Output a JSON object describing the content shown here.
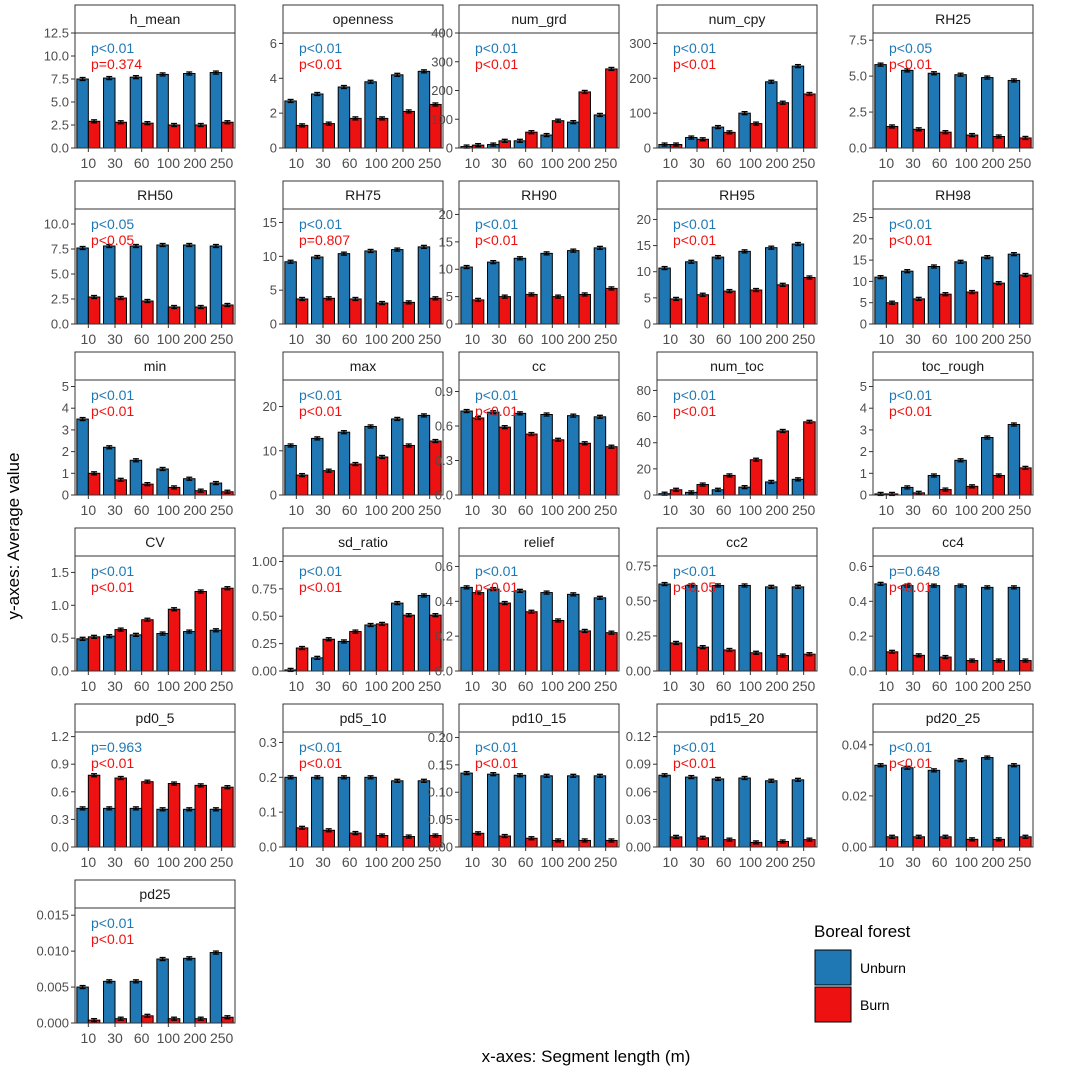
{
  "figure": {
    "ylabel": "y-axes:  Average value",
    "xlabel": "x-axes:  Segment length (m)",
    "categories": [
      "10",
      "30",
      "60",
      "100",
      "200",
      "250"
    ],
    "colors": {
      "unburn": "#1F78B4",
      "burn": "#EE1111",
      "unburn_text": "#1F78B4",
      "burn_text": "#EE1111"
    },
    "legend": {
      "title": "Boreal forest",
      "items": [
        "Unburn",
        "Burn"
      ]
    }
  },
  "chart_data": [
    {
      "type": "bar",
      "title": "h_mean",
      "ylim": [
        0,
        12.5
      ],
      "yticks": [
        0,
        2.5,
        5,
        7.5,
        10,
        12.5
      ],
      "ytick_labels": [
        "0.0",
        "2.5",
        "5.0",
        "7.5",
        "10.0",
        "12.5"
      ],
      "p_unburn": "p<0.01",
      "p_burn": "p=0.374",
      "series": [
        {
          "name": "Unburn",
          "values": [
            7.5,
            7.6,
            7.7,
            8.0,
            8.1,
            8.2
          ]
        },
        {
          "name": "Burn",
          "values": [
            2.9,
            2.8,
            2.7,
            2.5,
            2.5,
            2.8
          ]
        }
      ]
    },
    {
      "type": "bar",
      "title": "openness",
      "ylim": [
        0,
        6.6
      ],
      "yticks": [
        0,
        2,
        4,
        6
      ],
      "ytick_labels": [
        "0",
        "2",
        "4",
        "6"
      ],
      "p_unburn": "p<0.01",
      "p_burn": "p<0.01",
      "series": [
        {
          "name": "Unburn",
          "values": [
            2.7,
            3.1,
            3.5,
            3.8,
            4.2,
            4.4
          ]
        },
        {
          "name": "Burn",
          "values": [
            1.3,
            1.4,
            1.7,
            1.7,
            2.1,
            2.5
          ]
        }
      ]
    },
    {
      "type": "bar",
      "title": "num_grd",
      "ylim": [
        0,
        400
      ],
      "yticks": [
        0,
        100,
        200,
        300,
        400
      ],
      "ytick_labels": [
        "0",
        "100",
        "200",
        "300",
        "400"
      ],
      "p_unburn": "p<0.01",
      "p_burn": "p<0.01",
      "series": [
        {
          "name": "Unburn",
          "values": [
            5,
            12,
            25,
            45,
            90,
            115
          ]
        },
        {
          "name": "Burn",
          "values": [
            10,
            25,
            55,
            95,
            195,
            275
          ]
        }
      ]
    },
    {
      "type": "bar",
      "title": "num_cpy",
      "ylim": [
        0,
        330
      ],
      "yticks": [
        0,
        100,
        200,
        300
      ],
      "ytick_labels": [
        "0",
        "100",
        "200",
        "300"
      ],
      "p_unburn": "p<0.01",
      "p_burn": "p<0.01",
      "series": [
        {
          "name": "Unburn",
          "values": [
            10,
            30,
            60,
            100,
            190,
            235
          ]
        },
        {
          "name": "Burn",
          "values": [
            10,
            25,
            45,
            70,
            130,
            155
          ]
        }
      ]
    },
    {
      "type": "bar",
      "title": "RH25",
      "ylim": [
        0,
        8
      ],
      "yticks": [
        0,
        2.5,
        5,
        7.5
      ],
      "ytick_labels": [
        "0.0",
        "2.5",
        "5.0",
        "7.5"
      ],
      "p_unburn": "p<0.05",
      "p_burn": "p<0.01",
      "series": [
        {
          "name": "Unburn",
          "values": [
            5.8,
            5.4,
            5.2,
            5.1,
            4.9,
            4.7
          ]
        },
        {
          "name": "Burn",
          "values": [
            1.5,
            1.3,
            1.1,
            0.9,
            0.8,
            0.7
          ]
        }
      ]
    },
    {
      "type": "bar",
      "title": "RH50",
      "ylim": [
        0,
        11.5
      ],
      "yticks": [
        0,
        2.5,
        5,
        7.5,
        10
      ],
      "ytick_labels": [
        "0.0",
        "2.5",
        "5.0",
        "7.5",
        "10.0"
      ],
      "p_unburn": "p<0.05",
      "p_burn": "p<0.05",
      "series": [
        {
          "name": "Unburn",
          "values": [
            7.6,
            7.8,
            7.8,
            7.9,
            7.9,
            7.8
          ]
        },
        {
          "name": "Burn",
          "values": [
            2.7,
            2.6,
            2.3,
            1.7,
            1.7,
            1.9
          ]
        }
      ]
    },
    {
      "type": "bar",
      "title": "RH75",
      "ylim": [
        0,
        17
      ],
      "yticks": [
        0,
        5,
        10,
        15
      ],
      "ytick_labels": [
        "0",
        "5",
        "10",
        "15"
      ],
      "p_unburn": "p<0.01",
      "p_burn": "p=0.807",
      "series": [
        {
          "name": "Unburn",
          "values": [
            9.2,
            9.9,
            10.4,
            10.8,
            11.0,
            11.4
          ]
        },
        {
          "name": "Burn",
          "values": [
            3.7,
            3.8,
            3.7,
            3.1,
            3.2,
            3.8
          ]
        }
      ]
    },
    {
      "type": "bar",
      "title": "RH90",
      "ylim": [
        0,
        21
      ],
      "yticks": [
        0,
        5,
        10,
        15,
        20
      ],
      "ytick_labels": [
        "0",
        "5",
        "10",
        "15",
        "20"
      ],
      "p_unburn": "p<0.01",
      "p_burn": "p<0.01",
      "series": [
        {
          "name": "Unburn",
          "values": [
            10.4,
            11.3,
            12.0,
            12.9,
            13.4,
            13.9
          ]
        },
        {
          "name": "Burn",
          "values": [
            4.4,
            5.0,
            5.4,
            5.0,
            5.4,
            6.5
          ]
        }
      ]
    },
    {
      "type": "bar",
      "title": "RH95",
      "ylim": [
        0,
        22
      ],
      "yticks": [
        0,
        5,
        10,
        15,
        20
      ],
      "ytick_labels": [
        "0",
        "5",
        "10",
        "15",
        "20"
      ],
      "p_unburn": "p<0.01",
      "p_burn": "p<0.01",
      "series": [
        {
          "name": "Unburn",
          "values": [
            10.7,
            11.9,
            12.8,
            13.9,
            14.6,
            15.3
          ]
        },
        {
          "name": "Burn",
          "values": [
            4.8,
            5.6,
            6.3,
            6.5,
            7.5,
            8.9
          ]
        }
      ]
    },
    {
      "type": "bar",
      "title": "RH98",
      "ylim": [
        0,
        27
      ],
      "yticks": [
        0,
        5,
        10,
        15,
        20,
        25
      ],
      "ytick_labels": [
        "0",
        "5",
        "10",
        "15",
        "20",
        "25"
      ],
      "p_unburn": "p<0.01",
      "p_burn": "p<0.01",
      "series": [
        {
          "name": "Unburn",
          "values": [
            11.0,
            12.4,
            13.5,
            14.6,
            15.7,
            16.4
          ]
        },
        {
          "name": "Burn",
          "values": [
            5.0,
            5.9,
            7.0,
            7.5,
            9.6,
            11.5
          ]
        }
      ]
    },
    {
      "type": "bar",
      "title": "min",
      "ylim": [
        0,
        5.3
      ],
      "yticks": [
        0,
        1,
        2,
        3,
        4,
        5
      ],
      "ytick_labels": [
        "0",
        "1",
        "2",
        "3",
        "4",
        "5"
      ],
      "p_unburn": "p<0.01",
      "p_burn": "p<0.01",
      "series": [
        {
          "name": "Unburn",
          "values": [
            3.5,
            2.2,
            1.6,
            1.2,
            0.75,
            0.55
          ]
        },
        {
          "name": "Burn",
          "values": [
            1.0,
            0.7,
            0.5,
            0.35,
            0.2,
            0.15
          ]
        }
      ]
    },
    {
      "type": "bar",
      "title": "max",
      "ylim": [
        0,
        26
      ],
      "yticks": [
        0,
        10,
        20
      ],
      "ytick_labels": [
        "0",
        "10",
        "20"
      ],
      "p_unburn": "p<0.01",
      "p_burn": "p<0.01",
      "series": [
        {
          "name": "Unburn",
          "values": [
            11.2,
            12.8,
            14.2,
            15.5,
            17.2,
            18.0
          ]
        },
        {
          "name": "Burn",
          "values": [
            4.5,
            5.5,
            7.0,
            8.6,
            11.2,
            12.2
          ]
        }
      ]
    },
    {
      "type": "bar",
      "title": "cc",
      "ylim": [
        0,
        1.0
      ],
      "yticks": [
        0,
        0.3,
        0.6,
        0.9
      ],
      "ytick_labels": [
        "0.0",
        "0.3",
        "0.6",
        "0.9"
      ],
      "p_unburn": "p<0.01",
      "p_burn": "p<0.01",
      "series": [
        {
          "name": "Unburn",
          "values": [
            0.73,
            0.72,
            0.71,
            0.7,
            0.69,
            0.68
          ]
        },
        {
          "name": "Burn",
          "values": [
            0.67,
            0.59,
            0.53,
            0.48,
            0.45,
            0.42
          ]
        }
      ]
    },
    {
      "type": "bar",
      "title": "num_toc",
      "ylim": [
        0,
        88
      ],
      "yticks": [
        0,
        20,
        40,
        60,
        80
      ],
      "ytick_labels": [
        "0",
        "20",
        "40",
        "60",
        "80"
      ],
      "p_unburn": "p<0.01",
      "p_burn": "p<0.01",
      "series": [
        {
          "name": "Unburn",
          "values": [
            1,
            2,
            4,
            6,
            10,
            12
          ]
        },
        {
          "name": "Burn",
          "values": [
            4,
            8,
            15,
            27,
            49,
            56
          ]
        }
      ]
    },
    {
      "type": "bar",
      "title": "toc_rough",
      "ylim": [
        0,
        5.3
      ],
      "yticks": [
        0,
        1,
        2,
        3,
        4,
        5
      ],
      "ytick_labels": [
        "0",
        "1",
        "2",
        "3",
        "4",
        "5"
      ],
      "p_unburn": "p<0.01",
      "p_burn": "p<0.01",
      "series": [
        {
          "name": "Unburn",
          "values": [
            0.05,
            0.35,
            0.9,
            1.6,
            2.65,
            3.25
          ]
        },
        {
          "name": "Burn",
          "values": [
            0.05,
            0.1,
            0.25,
            0.4,
            0.9,
            1.25
          ]
        }
      ]
    },
    {
      "type": "bar",
      "title": "CV",
      "ylim": [
        0,
        1.75
      ],
      "yticks": [
        0,
        0.5,
        1.0,
        1.5
      ],
      "ytick_labels": [
        "0.0",
        "0.5",
        "1.0",
        "1.5"
      ],
      "p_unburn": "p<0.01",
      "p_burn": "p<0.01",
      "series": [
        {
          "name": "Unburn",
          "values": [
            0.49,
            0.53,
            0.55,
            0.57,
            0.6,
            0.62
          ]
        },
        {
          "name": "Burn",
          "values": [
            0.52,
            0.63,
            0.78,
            0.94,
            1.21,
            1.26
          ]
        }
      ]
    },
    {
      "type": "bar",
      "title": "sd_ratio",
      "ylim": [
        0,
        1.05
      ],
      "yticks": [
        0,
        0.25,
        0.5,
        0.75,
        1.0
      ],
      "ytick_labels": [
        "0.00",
        "0.25",
        "0.50",
        "0.75",
        "1.00"
      ],
      "p_unburn": "p<0.01",
      "p_burn": "p<0.01",
      "series": [
        {
          "name": "Unburn",
          "values": [
            0.01,
            0.12,
            0.27,
            0.42,
            0.62,
            0.69
          ]
        },
        {
          "name": "Burn",
          "values": [
            0.21,
            0.29,
            0.36,
            0.43,
            0.51,
            0.51
          ]
        }
      ]
    },
    {
      "type": "bar",
      "title": "relief",
      "ylim": [
        0,
        0.66
      ],
      "yticks": [
        0,
        0.2,
        0.4,
        0.6
      ],
      "ytick_labels": [
        "0.0",
        "0.2",
        "0.4",
        "0.6"
      ],
      "p_unburn": "p<0.01",
      "p_burn": "p<0.01",
      "series": [
        {
          "name": "Unburn",
          "values": [
            0.48,
            0.47,
            0.46,
            0.45,
            0.44,
            0.42
          ]
        },
        {
          "name": "Burn",
          "values": [
            0.45,
            0.39,
            0.34,
            0.29,
            0.23,
            0.22
          ]
        }
      ]
    },
    {
      "type": "bar",
      "title": "cc2",
      "ylim": [
        0,
        0.82
      ],
      "yticks": [
        0,
        0.25,
        0.5,
        0.75
      ],
      "ytick_labels": [
        "0.00",
        "0.25",
        "0.50",
        "0.75"
      ],
      "p_unburn": "p<0.01",
      "p_burn": "p<0.05",
      "series": [
        {
          "name": "Unburn",
          "values": [
            0.62,
            0.61,
            0.61,
            0.61,
            0.6,
            0.6
          ]
        },
        {
          "name": "Burn",
          "values": [
            0.2,
            0.17,
            0.15,
            0.13,
            0.11,
            0.12
          ]
        }
      ]
    },
    {
      "type": "bar",
      "title": "cc4",
      "ylim": [
        0,
        0.66
      ],
      "yticks": [
        0,
        0.2,
        0.4,
        0.6
      ],
      "ytick_labels": [
        "0.0",
        "0.2",
        "0.4",
        "0.6"
      ],
      "p_unburn": "p=0.648",
      "p_burn": "p<0.01",
      "series": [
        {
          "name": "Unburn",
          "values": [
            0.5,
            0.49,
            0.49,
            0.49,
            0.48,
            0.48
          ]
        },
        {
          "name": "Burn",
          "values": [
            0.11,
            0.09,
            0.08,
            0.06,
            0.06,
            0.06
          ]
        }
      ]
    },
    {
      "type": "bar",
      "title": "pd0_5",
      "ylim": [
        0,
        1.25
      ],
      "yticks": [
        0,
        0.3,
        0.6,
        0.9,
        1.2
      ],
      "ytick_labels": [
        "0.0",
        "0.3",
        "0.6",
        "0.9",
        "1.2"
      ],
      "p_unburn": "p=0.963",
      "p_burn": "p<0.01",
      "series": [
        {
          "name": "Unburn",
          "values": [
            0.42,
            0.42,
            0.42,
            0.41,
            0.41,
            0.41
          ]
        },
        {
          "name": "Burn",
          "values": [
            0.78,
            0.75,
            0.71,
            0.69,
            0.67,
            0.65
          ]
        }
      ]
    },
    {
      "type": "bar",
      "title": "pd5_10",
      "ylim": [
        0,
        0.33
      ],
      "yticks": [
        0,
        0.1,
        0.2,
        0.3
      ],
      "ytick_labels": [
        "0.0",
        "0.1",
        "0.2",
        "0.3"
      ],
      "p_unburn": "p<0.01",
      "p_burn": "p<0.01",
      "series": [
        {
          "name": "Unburn",
          "values": [
            0.2,
            0.2,
            0.2,
            0.2,
            0.19,
            0.19
          ]
        },
        {
          "name": "Burn",
          "values": [
            0.055,
            0.048,
            0.04,
            0.033,
            0.03,
            0.033
          ]
        }
      ]
    },
    {
      "type": "bar",
      "title": "pd10_15",
      "ylim": [
        0,
        0.21
      ],
      "yticks": [
        0,
        0.05,
        0.1,
        0.15,
        0.2
      ],
      "ytick_labels": [
        "0.00",
        "0.05",
        "0.10",
        "0.15",
        "0.20"
      ],
      "p_unburn": "p<0.01",
      "p_burn": "p<0.01",
      "series": [
        {
          "name": "Unburn",
          "values": [
            0.135,
            0.133,
            0.131,
            0.13,
            0.13,
            0.13
          ]
        },
        {
          "name": "Burn",
          "values": [
            0.025,
            0.02,
            0.016,
            0.012,
            0.012,
            0.012
          ]
        }
      ]
    },
    {
      "type": "bar",
      "title": "pd15_20",
      "ylim": [
        0,
        0.125
      ],
      "yticks": [
        0,
        0.03,
        0.06,
        0.09,
        0.12
      ],
      "ytick_labels": [
        "0.00",
        "0.03",
        "0.06",
        "0.09",
        "0.12"
      ],
      "p_unburn": "p<0.01",
      "p_burn": "p<0.01",
      "series": [
        {
          "name": "Unburn",
          "values": [
            0.078,
            0.076,
            0.074,
            0.075,
            0.072,
            0.073
          ]
        },
        {
          "name": "Burn",
          "values": [
            0.011,
            0.01,
            0.008,
            0.005,
            0.006,
            0.008
          ]
        }
      ]
    },
    {
      "type": "bar",
      "title": "pd20_25",
      "ylim": [
        0,
        0.045
      ],
      "yticks": [
        0,
        0.02,
        0.04
      ],
      "ytick_labels": [
        "0.00",
        "0.02",
        "0.04"
      ],
      "p_unburn": "p<0.01",
      "p_burn": "p<0.01",
      "series": [
        {
          "name": "Unburn",
          "values": [
            0.032,
            0.031,
            0.03,
            0.034,
            0.035,
            0.032
          ]
        },
        {
          "name": "Burn",
          "values": [
            0.004,
            0.004,
            0.004,
            0.003,
            0.003,
            0.004
          ]
        }
      ]
    },
    {
      "type": "bar",
      "title": "pd25",
      "ylim": [
        0,
        0.016
      ],
      "yticks": [
        0,
        0.005,
        0.01,
        0.015
      ],
      "ytick_labels": [
        "0.000",
        "0.005",
        "0.010",
        "0.015"
      ],
      "p_unburn": "p<0.01",
      "p_burn": "p<0.01",
      "series": [
        {
          "name": "Unburn",
          "values": [
            0.005,
            0.0058,
            0.0058,
            0.0089,
            0.009,
            0.0098
          ]
        },
        {
          "name": "Burn",
          "values": [
            0.0004,
            0.0006,
            0.001,
            0.0006,
            0.0006,
            0.0008
          ]
        }
      ]
    }
  ]
}
